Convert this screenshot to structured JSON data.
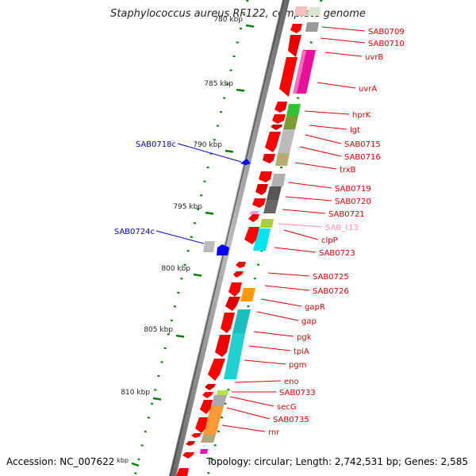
{
  "title": "Staphylococcus aureus RF122, complete genome",
  "footer": {
    "accession": "Accession: NC_007622",
    "summary": "Topology: circular; Length: 2,742,531 bp; Genes: 2,585"
  },
  "scale": {
    "unit_label": "kbp",
    "ticks": [
      "780 kbp",
      "785 kbp",
      "790 kbp",
      "795 kbp",
      "800 kbp",
      "805 kbp",
      "810 kbp"
    ]
  },
  "gene_labels_forward": [
    "SAB0709",
    "SAB0710",
    "uvrB",
    "uvrA",
    "hprK",
    "lgt",
    "SAB0715",
    "SAB0716",
    "trxB",
    "SAB0719",
    "SAB0720",
    "SAB0721",
    "SAB_t13",
    "clpP",
    "SAB0723",
    "SAB0725",
    "SAB0726",
    "gapR",
    "gap",
    "pgk",
    "tpiA",
    "pgm",
    "eno",
    "SAB0733",
    "secG",
    "SAB0735",
    "rnr"
  ],
  "gene_labels_reverse": [
    "SAB0718c",
    "SAB0724c"
  ],
  "colors": {
    "cds": "#ff0000",
    "reverse_cds": "#0000ff",
    "trna": "#ff99cc",
    "backbone": "#999999",
    "ticks": "#008000"
  }
}
